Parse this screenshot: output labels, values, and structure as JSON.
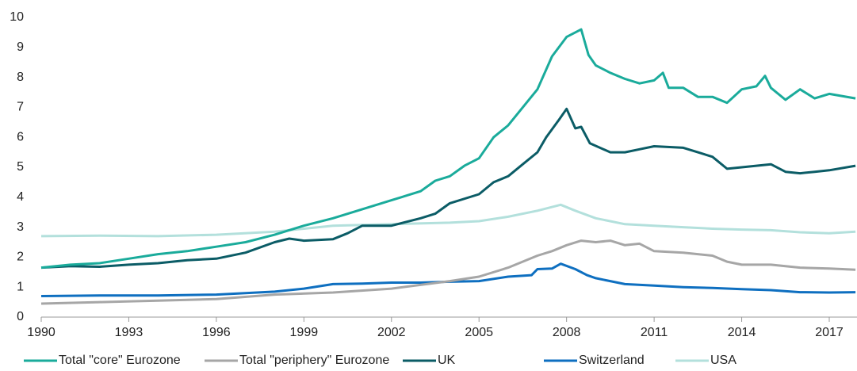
{
  "chart_data": {
    "type": "line",
    "xlim": [
      1990,
      2017.9
    ],
    "xticks": [
      1990,
      1993,
      1996,
      1999,
      2002,
      2005,
      2008,
      2011,
      2014,
      2017
    ],
    "ylim": [
      0,
      10
    ],
    "yticks": [
      0,
      1,
      2,
      3,
      4,
      5,
      6,
      7,
      8,
      9,
      10
    ],
    "grid": false,
    "legend": "bottom",
    "series": [
      {
        "name": "Total \"core\" Eurozone",
        "color": "#1aab9b",
        "x": [
          1990,
          1991,
          1992,
          1993,
          1994,
          1995,
          1996,
          1997,
          1998,
          1999,
          2000,
          2001,
          2002,
          2003,
          2003.5,
          2004,
          2004.5,
          2005,
          2005.5,
          2006,
          2006.5,
          2007,
          2007.5,
          2008,
          2008.5,
          2008.75,
          2009,
          2009.5,
          2010,
          2010.5,
          2011,
          2011.3,
          2011.5,
          2012,
          2012.5,
          2013,
          2013.5,
          2014,
          2014.5,
          2014.8,
          2015,
          2015.5,
          2016,
          2016.5,
          2017,
          2017.9
        ],
        "values": [
          1.65,
          1.75,
          1.8,
          1.95,
          2.1,
          2.2,
          2.35,
          2.5,
          2.75,
          3.05,
          3.3,
          3.6,
          3.9,
          4.2,
          4.55,
          4.7,
          5.05,
          5.3,
          6.0,
          6.4,
          7.0,
          7.6,
          8.7,
          9.35,
          9.6,
          8.75,
          8.4,
          8.15,
          7.95,
          7.8,
          7.9,
          8.15,
          7.65,
          7.65,
          7.35,
          7.35,
          7.15,
          7.6,
          7.7,
          8.05,
          7.65,
          7.25,
          7.6,
          7.3,
          7.45,
          7.3
        ]
      },
      {
        "name": "Total \"periphery\" Eurozone",
        "color": "#a6a6a6",
        "x": [
          1990,
          1992,
          1994,
          1996,
          1998,
          2000,
          2002,
          2004,
          2005,
          2006,
          2007,
          2007.5,
          2008,
          2008.5,
          2009,
          2009.5,
          2010,
          2010.5,
          2011,
          2012,
          2013,
          2013.5,
          2014,
          2015,
          2016,
          2017,
          2017.9
        ],
        "values": [
          0.45,
          0.5,
          0.55,
          0.6,
          0.75,
          0.82,
          0.95,
          1.2,
          1.35,
          1.65,
          2.05,
          2.2,
          2.4,
          2.55,
          2.5,
          2.55,
          2.4,
          2.45,
          2.2,
          2.15,
          2.05,
          1.85,
          1.75,
          1.75,
          1.65,
          1.62,
          1.58
        ]
      },
      {
        "name": "UK",
        "color": "#0b5c66",
        "x": [
          1990,
          1991,
          1992,
          1993,
          1994,
          1995,
          1996,
          1997,
          1998,
          1998.5,
          1999,
          2000,
          2000.5,
          2001,
          2002,
          2003,
          2003.5,
          2004,
          2005,
          2005.5,
          2006,
          2006.5,
          2007,
          2007.3,
          2007.75,
          2008,
          2008.3,
          2008.5,
          2008.8,
          2009.5,
          2010,
          2010.5,
          2011,
          2012,
          2012.5,
          2013,
          2013.5,
          2014,
          2014.5,
          2015,
          2015.5,
          2016,
          2016.5,
          2017,
          2017.9
        ],
        "values": [
          1.65,
          1.7,
          1.68,
          1.75,
          1.8,
          1.9,
          1.95,
          2.15,
          2.5,
          2.62,
          2.55,
          2.6,
          2.8,
          3.05,
          3.05,
          3.3,
          3.45,
          3.8,
          4.1,
          4.5,
          4.7,
          5.1,
          5.5,
          6.0,
          6.6,
          6.95,
          6.3,
          6.35,
          5.8,
          5.5,
          5.5,
          5.6,
          5.7,
          5.65,
          5.5,
          5.35,
          4.95,
          5.0,
          5.05,
          5.1,
          4.85,
          4.8,
          4.85,
          4.9,
          5.05
        ]
      },
      {
        "name": "Switzerland",
        "color": "#0e6fc0",
        "x": [
          1990,
          1992,
          1994,
          1996,
          1998,
          1999,
          2000,
          2001,
          2002,
          2003,
          2004,
          2005,
          2006,
          2006.8,
          2007,
          2007.5,
          2007.8,
          2008.3,
          2008.7,
          2009,
          2010,
          2011,
          2012,
          2013,
          2014,
          2015,
          2016,
          2017,
          2017.9
        ],
        "values": [
          0.7,
          0.72,
          0.72,
          0.75,
          0.85,
          0.95,
          1.1,
          1.12,
          1.15,
          1.15,
          1.18,
          1.2,
          1.35,
          1.4,
          1.6,
          1.62,
          1.78,
          1.6,
          1.4,
          1.3,
          1.1,
          1.05,
          1.0,
          0.97,
          0.93,
          0.9,
          0.83,
          0.82,
          0.83
        ]
      },
      {
        "name": "USA",
        "color": "#b3e0dc",
        "x": [
          1990,
          1992,
          1994,
          1996,
          1998,
          2000,
          2002,
          2004,
          2005,
          2006,
          2007,
          2007.8,
          2008.3,
          2009,
          2010,
          2011,
          2012,
          2013,
          2014,
          2015,
          2016,
          2017,
          2017.9
        ],
        "values": [
          2.7,
          2.72,
          2.7,
          2.75,
          2.85,
          3.05,
          3.1,
          3.15,
          3.2,
          3.35,
          3.55,
          3.75,
          3.55,
          3.3,
          3.1,
          3.05,
          3.0,
          2.95,
          2.92,
          2.9,
          2.83,
          2.8,
          2.85
        ]
      }
    ]
  }
}
